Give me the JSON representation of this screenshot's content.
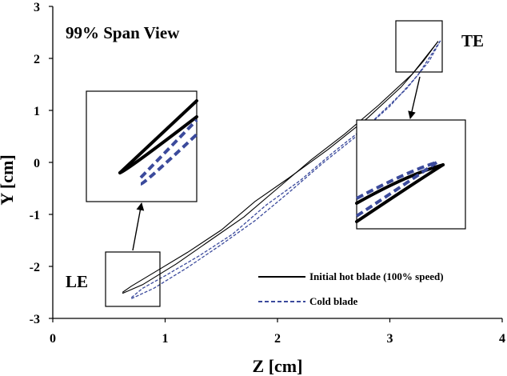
{
  "chart_data": {
    "type": "line",
    "title": "99% Span View",
    "xlabel": "Z [cm]",
    "ylabel": "Y [cm]",
    "xlim": [
      0,
      4
    ],
    "ylim": [
      -3,
      3
    ],
    "xticks": [
      "0",
      "1",
      "2",
      "3",
      "4"
    ],
    "yticks": [
      "3",
      "2",
      "1",
      "0",
      "-1",
      "-2",
      "-3"
    ],
    "grid": false,
    "legend_position": "bottom-right",
    "annotations": [
      {
        "text": "LE",
        "at": [
          0.5,
          -2.35
        ]
      },
      {
        "text": "TE",
        "at": [
          3.75,
          2.3
        ]
      }
    ],
    "insets": [
      {
        "name": "LE zoom",
        "region_x": [
          0.47,
          0.95
        ],
        "region_y": [
          -2.75,
          -2.17
        ]
      },
      {
        "name": "TE zoom",
        "region_x": [
          3.05,
          3.45
        ],
        "region_y": [
          1.73,
          2.35
        ]
      }
    ],
    "series": [
      {
        "name": "Initial hot blade (100% speed)",
        "color": "#000000",
        "style": "solid",
        "suction_side": [
          [
            0.62,
            -2.5
          ],
          [
            0.7,
            -2.38
          ],
          [
            0.9,
            -2.12
          ],
          [
            1.2,
            -1.73
          ],
          [
            1.5,
            -1.3
          ],
          [
            1.8,
            -0.75
          ],
          [
            2.1,
            -0.3
          ],
          [
            2.45,
            0.25
          ],
          [
            2.8,
            0.85
          ],
          [
            3.1,
            1.45
          ],
          [
            3.3,
            1.95
          ],
          [
            3.43,
            2.33
          ]
        ],
        "pressure_side": [
          [
            0.62,
            -2.52
          ],
          [
            0.8,
            -2.35
          ],
          [
            1.1,
            -1.95
          ],
          [
            1.4,
            -1.5
          ],
          [
            1.7,
            -1.05
          ],
          [
            2.0,
            -0.5
          ],
          [
            2.3,
            0.05
          ],
          [
            2.6,
            0.55
          ],
          [
            2.9,
            1.1
          ],
          [
            3.2,
            1.7
          ],
          [
            3.43,
            2.33
          ]
        ]
      },
      {
        "name": "Cold blade",
        "color": "#3b4a9c",
        "style": "dashed",
        "suction_side": [
          [
            0.7,
            -2.6
          ],
          [
            0.8,
            -2.42
          ],
          [
            1.0,
            -2.18
          ],
          [
            1.3,
            -1.8
          ],
          [
            1.6,
            -1.38
          ],
          [
            1.9,
            -0.82
          ],
          [
            2.2,
            -0.35
          ],
          [
            2.5,
            0.2
          ],
          [
            2.85,
            0.8
          ],
          [
            3.15,
            1.42
          ],
          [
            3.35,
            1.95
          ],
          [
            3.45,
            2.34
          ]
        ],
        "pressure_side": [
          [
            0.7,
            -2.62
          ],
          [
            0.9,
            -2.42
          ],
          [
            1.2,
            -2.02
          ],
          [
            1.5,
            -1.58
          ],
          [
            1.8,
            -1.12
          ],
          [
            2.1,
            -0.58
          ],
          [
            2.4,
            -0.02
          ],
          [
            2.7,
            0.5
          ],
          [
            3.0,
            1.08
          ],
          [
            3.25,
            1.68
          ],
          [
            3.45,
            2.34
          ]
        ]
      }
    ]
  }
}
